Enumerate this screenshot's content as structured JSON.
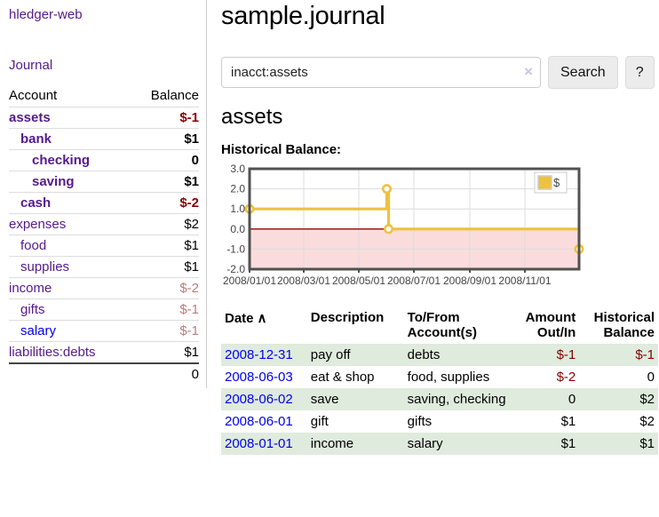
{
  "app": {
    "title": "hledger-web",
    "nav_journal": "Journal"
  },
  "sidebar": {
    "header": {
      "account": "Account",
      "balance": "Balance"
    },
    "accounts": [
      {
        "label": "assets",
        "level": 1,
        "bold": true,
        "balance": "$-1",
        "neg": "strong",
        "link_color": "purple"
      },
      {
        "label": "bank",
        "level": 2,
        "bold": true,
        "balance": "$1",
        "neg": "none",
        "link_color": "purple"
      },
      {
        "label": "checking",
        "level": 3,
        "bold": true,
        "balance": "0",
        "neg": "none",
        "link_color": "purple"
      },
      {
        "label": "saving",
        "level": 3,
        "bold": true,
        "balance": "$1",
        "neg": "none",
        "link_color": "purple"
      },
      {
        "label": "cash",
        "level": 2,
        "bold": true,
        "balance": "$-2",
        "neg": "strong",
        "link_color": "purple"
      },
      {
        "label": "expenses",
        "level": 1,
        "bold": false,
        "balance": "$2",
        "neg": "none",
        "link_color": "purple"
      },
      {
        "label": "food",
        "level": 2,
        "bold": false,
        "balance": "$1",
        "neg": "none",
        "link_color": "purple"
      },
      {
        "label": "supplies",
        "level": 2,
        "bold": false,
        "balance": "$1",
        "neg": "none",
        "link_color": "purple"
      },
      {
        "label": "income",
        "level": 1,
        "bold": false,
        "balance": "$-2",
        "neg": "faded",
        "link_color": "purple"
      },
      {
        "label": "gifts",
        "level": 2,
        "bold": false,
        "balance": "$-1",
        "neg": "faded",
        "link_color": "purple"
      },
      {
        "label": "salary",
        "level": 2,
        "bold": false,
        "balance": "$-1",
        "neg": "faded",
        "link_color": "blue"
      },
      {
        "label": "liabilities:debts",
        "level": 1,
        "bold": false,
        "balance": "$1",
        "neg": "none",
        "link_color": "purple"
      }
    ],
    "total": "0"
  },
  "header": {
    "title": "sample.journal"
  },
  "search": {
    "value": "inacct:assets",
    "clear_glyph": "×",
    "button": "Search",
    "help_button": "?"
  },
  "account_view": {
    "title": "assets",
    "chart_label": "Historical Balance:"
  },
  "chart_data": {
    "type": "line",
    "style": "step-after",
    "series": [
      {
        "name": "$",
        "points": [
          [
            "2008-01-01",
            1
          ],
          [
            "2008-06-01",
            2
          ],
          [
            "2008-06-03",
            0
          ],
          [
            "2008-12-31",
            -1
          ]
        ]
      }
    ],
    "title": "",
    "xlabel": "",
    "ylabel": "",
    "ylim": [
      -2,
      3
    ],
    "y_ticks": [
      "3.0",
      "2.0",
      "1.0",
      "0.0",
      "-1.0",
      "-2.0"
    ],
    "x_ticks": [
      "2008/01/01",
      "2008/03/01",
      "2008/05/01",
      "2008/07/01",
      "2008/09/01",
      "2008/11/01"
    ],
    "legend_position": "top-right",
    "grid": true,
    "negative_region_fill": "#fbdcdc",
    "zero_line_color": "#9b0000",
    "line_color": "#edc240",
    "border_color": "#515151"
  },
  "transactions": {
    "headers": {
      "date": "Date",
      "description": "Description",
      "accounts": "To/From Account(s)",
      "amount": "Amount Out/In",
      "balance": "Historical Balance"
    },
    "sort_caret": "∧",
    "rows": [
      {
        "date": "2008-12-31",
        "description": "pay off",
        "accounts": "debts",
        "amount": "$-1",
        "amount_neg": true,
        "balance": "$-1",
        "balance_neg": true
      },
      {
        "date": "2008-06-03",
        "description": "eat & shop",
        "accounts": "food, supplies",
        "amount": "$-2",
        "amount_neg": true,
        "balance": "0",
        "balance_neg": false
      },
      {
        "date": "2008-06-02",
        "description": "save",
        "accounts": "saving, checking",
        "amount": "0",
        "amount_neg": false,
        "balance": "$2",
        "balance_neg": false
      },
      {
        "date": "2008-06-01",
        "description": "gift",
        "accounts": "gifts",
        "amount": "$1",
        "amount_neg": false,
        "balance": "$2",
        "balance_neg": false
      },
      {
        "date": "2008-01-01",
        "description": "income",
        "accounts": "salary",
        "amount": "$1",
        "amount_neg": false,
        "balance": "$1",
        "balance_neg": false
      }
    ]
  },
  "colors": {
    "link_purple": "#551a8b",
    "link_blue": "#0000ee",
    "negative_strong": "#880000",
    "negative_faded": "#bc7c7c",
    "row_stripe_green": "#dfebdd",
    "chart_gold": "#edc240"
  }
}
